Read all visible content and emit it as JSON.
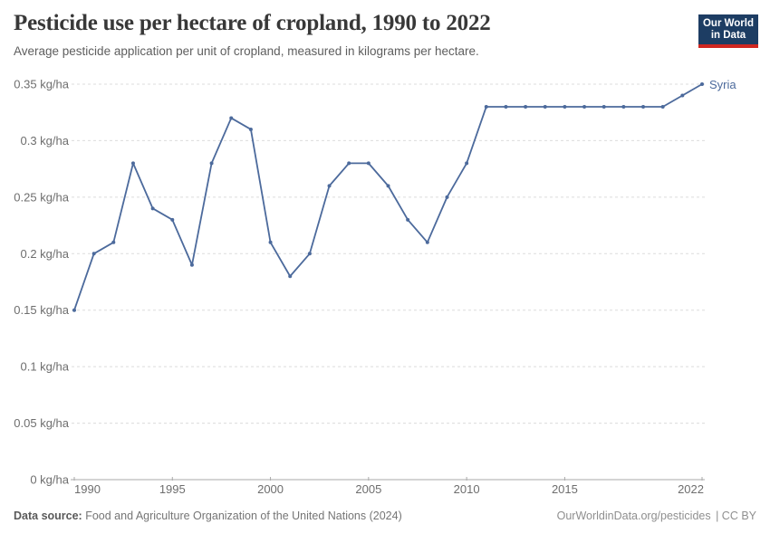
{
  "header": {
    "title": "Pesticide use per hectare of cropland, 1990 to 2022",
    "subtitle": "Average pesticide application per unit of cropland, measured in kilograms per hectare.",
    "logo": {
      "line1": "Our World",
      "line2": "in Data",
      "bg_color": "#1d3d63",
      "accent_color": "#cf2721"
    }
  },
  "chart_data": {
    "type": "line",
    "title": "Pesticide use per hectare of cropland, 1990 to 2022",
    "xlabel": "",
    "ylabel": "kg/ha",
    "xlim": [
      1990,
      2022
    ],
    "ylim": [
      0,
      0.35
    ],
    "grid": true,
    "legend_position": "end-of-line",
    "x": [
      1990,
      1991,
      1992,
      1993,
      1994,
      1995,
      1996,
      1997,
      1998,
      1999,
      2000,
      2001,
      2002,
      2003,
      2004,
      2005,
      2006,
      2007,
      2008,
      2009,
      2010,
      2011,
      2012,
      2013,
      2014,
      2015,
      2016,
      2017,
      2018,
      2019,
      2020,
      2021,
      2022
    ],
    "series": [
      {
        "name": "Syria",
        "color": "#4c6a9c",
        "values": [
          0.15,
          0.2,
          0.21,
          0.28,
          0.24,
          0.23,
          0.19,
          0.28,
          0.32,
          0.31,
          0.21,
          0.18,
          0.2,
          0.26,
          0.28,
          0.28,
          0.26,
          0.23,
          0.21,
          0.25,
          0.28,
          0.33,
          0.33,
          0.33,
          0.33,
          0.33,
          0.33,
          0.33,
          0.33,
          0.33,
          0.33,
          0.34,
          0.35
        ]
      }
    ],
    "y_ticks": [
      {
        "value": 0,
        "label": "0 kg/ha"
      },
      {
        "value": 0.05,
        "label": "0.05 kg/ha"
      },
      {
        "value": 0.1,
        "label": "0.1 kg/ha"
      },
      {
        "value": 0.15,
        "label": "0.15 kg/ha"
      },
      {
        "value": 0.2,
        "label": "0.2 kg/ha"
      },
      {
        "value": 0.25,
        "label": "0.25 kg/ha"
      },
      {
        "value": 0.3,
        "label": "0.3 kg/ha"
      },
      {
        "value": 0.35,
        "label": "0.35 kg/ha"
      }
    ],
    "x_ticks": [
      {
        "value": 1990,
        "label": "1990",
        "align": "left"
      },
      {
        "value": 1995,
        "label": "1995",
        "align": "center"
      },
      {
        "value": 2000,
        "label": "2000",
        "align": "center"
      },
      {
        "value": 2005,
        "label": "2005",
        "align": "center"
      },
      {
        "value": 2010,
        "label": "2010",
        "align": "center"
      },
      {
        "value": 2015,
        "label": "2015",
        "align": "center"
      },
      {
        "value": 2022,
        "label": "2022",
        "align": "right"
      }
    ],
    "colors": {
      "gridline": "#dcdcdc",
      "axis": "#a9a9a9",
      "tick_label": "#6e6e6e"
    }
  },
  "footer": {
    "datasource_label": "Data source:",
    "datasource_text": "Food and Agriculture Organization of the United Nations (2024)",
    "url": "OurWorldinData.org/pesticides",
    "license": "| CC BY"
  }
}
